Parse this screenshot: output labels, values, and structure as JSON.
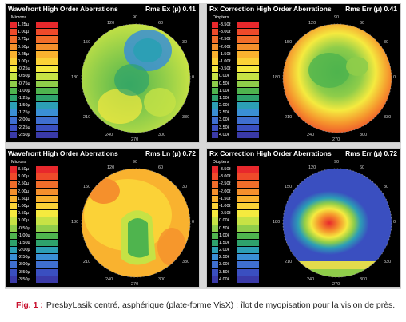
{
  "panels": [
    {
      "title": "Wavefront High Order Aberrations",
      "rms": "Rms Ex (µ) 0.41",
      "unit": "Microns",
      "legend": [
        "1.25µ",
        "1.00µ",
        "0.75µ",
        "0.50µ",
        "0.25µ",
        "0.00µ",
        "-0.25µ",
        "-0.50µ",
        "-0.75µ",
        "-1.00µ",
        "-1.25µ",
        "-1.50µ",
        "-1.75µ",
        "-2.00µ",
        "-2.25µ",
        "-2.50µ"
      ],
      "ticks": [
        "90",
        "60",
        "120",
        "150",
        "180",
        "30",
        "0",
        "210",
        "330",
        "240",
        "300",
        "270"
      ]
    },
    {
      "title": "Rx Correction High Order Aberrations",
      "rms": "Rms Err (µ) 0.41",
      "unit": "Diopters",
      "legend": [
        "-3.50ℓ",
        "-3.00ℓ",
        "-2.50ℓ",
        "-2.00ℓ",
        "-1.50ℓ",
        "-1.00ℓ",
        "-0.50ℓ",
        "0.00ℓ",
        "0.50ℓ",
        "1.00ℓ",
        "1.50ℓ",
        "2.00ℓ",
        "2.50ℓ",
        "3.00ℓ",
        "3.50ℓ",
        "4.00ℓ"
      ],
      "ticks": [
        "90",
        "60",
        "120",
        "150",
        "180",
        "30",
        "0",
        "210",
        "330",
        "240",
        "300",
        "270"
      ]
    },
    {
      "title": "Wavefront High Order Aberrations",
      "rms": "Rms Ln (µ) 0.72",
      "unit": "Microns",
      "legend": [
        "3.50µ",
        "3.00µ",
        "2.50µ",
        "2.00µ",
        "1.50µ",
        "1.00µ",
        "0.50µ",
        "0.00µ",
        "-0.50µ",
        "-1.00µ",
        "-1.50µ",
        "-2.00µ",
        "-2.50µ",
        "-3.00µ",
        "-3.50µ",
        "-3.50µ"
      ],
      "ticks": [
        "90",
        "60",
        "120",
        "150",
        "180",
        "30",
        "0",
        "210",
        "330",
        "240",
        "300",
        "270"
      ]
    },
    {
      "title": "Rx Correction High Order Aberrations",
      "rms": "Rms Err (µ) 0.72",
      "unit": "Diopters",
      "legend": [
        "-3.50ℓ",
        "-3.00ℓ",
        "-2.50ℓ",
        "-2.00ℓ",
        "-1.50ℓ",
        "-1.00ℓ",
        "-0.50ℓ",
        "0.00ℓ",
        "0.50ℓ",
        "1.00ℓ",
        "1.50ℓ",
        "2.00ℓ",
        "2.50ℓ",
        "3.00ℓ",
        "3.50ℓ",
        "4.00ℓ"
      ],
      "ticks": [
        "90",
        "60",
        "120",
        "150",
        "180",
        "30",
        "0",
        "210",
        "330",
        "240",
        "300",
        "270"
      ]
    }
  ],
  "scale_colors": [
    "#e8282c",
    "#ef4a2a",
    "#f26d2a",
    "#f5902c",
    "#f9b22f",
    "#fbd237",
    "#f5ea3f",
    "#c6e245",
    "#8fcd4a",
    "#4fb44e",
    "#2ea26c",
    "#2c9fb5",
    "#3a8fd5",
    "#3f6fd0",
    "#3a4fc0",
    "#3a3aa8"
  ],
  "caption": {
    "label": "Fig. 1 :",
    "text": "PresbyLasik centré, asphérique (plate-forme VisX) : îlot de myopisation pour la vision de près."
  }
}
